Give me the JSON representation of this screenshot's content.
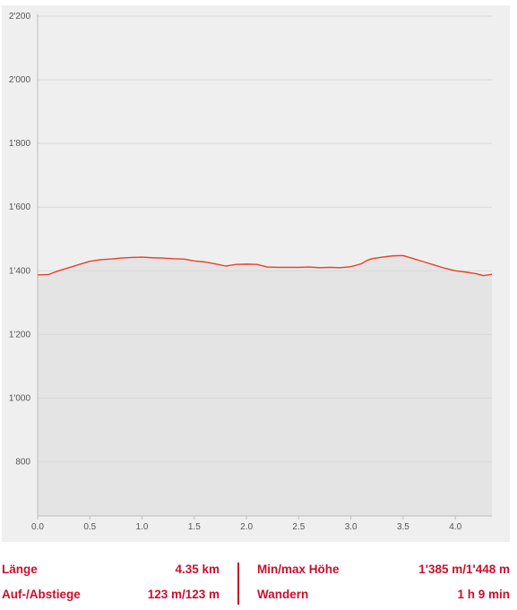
{
  "chart_data": {
    "type": "area",
    "title": "",
    "xlabel": "",
    "ylabel": "",
    "xlim": [
      0,
      4.35
    ],
    "ylim": [
      630,
      2200
    ],
    "grid": true,
    "x_ticks": [
      0.0,
      0.5,
      1.0,
      1.5,
      2.0,
      2.5,
      3.0,
      3.5,
      4.0
    ],
    "x_tick_labels": [
      "0.0",
      "0.5",
      "1.0",
      "1.5",
      "2.0",
      "2.5",
      "3.0",
      "3.5",
      "4.0"
    ],
    "y_ticks": [
      800,
      1000,
      1200,
      1400,
      1600,
      1800,
      2000,
      2200
    ],
    "y_tick_labels": [
      "800",
      "1'000",
      "1'200",
      "1'400",
      "1'600",
      "1'800",
      "2'000",
      "2'200"
    ],
    "line_color": "#e8402a",
    "fill_color": "#e4e4e4",
    "background_color": "#efefef",
    "grid_color": "#d9d9d9",
    "series": [
      {
        "x": [
          0.0,
          0.1,
          0.2,
          0.3,
          0.4,
          0.5,
          0.6,
          0.7,
          0.8,
          0.9,
          1.0,
          1.1,
          1.2,
          1.3,
          1.4,
          1.5,
          1.6,
          1.7,
          1.8,
          1.9,
          2.0,
          2.1,
          2.2,
          2.3,
          2.4,
          2.5,
          2.6,
          2.7,
          2.8,
          2.9,
          3.0,
          3.1,
          3.15,
          3.2,
          3.3,
          3.4,
          3.5,
          3.6,
          3.7,
          3.8,
          3.9,
          4.0,
          4.1,
          4.2,
          4.27,
          4.35
        ],
        "values": [
          1387,
          1388,
          1400,
          1410,
          1420,
          1430,
          1435,
          1437,
          1440,
          1442,
          1443,
          1441,
          1440,
          1438,
          1437,
          1431,
          1428,
          1422,
          1415,
          1420,
          1421,
          1420,
          1412,
          1411,
          1411,
          1411,
          1412,
          1410,
          1411,
          1410,
          1413,
          1422,
          1432,
          1438,
          1443,
          1447,
          1448,
          1438,
          1428,
          1418,
          1408,
          1400,
          1396,
          1391,
          1385,
          1389
        ]
      }
    ]
  },
  "stats": {
    "length_label": "Länge",
    "length_value": "4.35 km",
    "ascent_label": "Auf-/Abstiege",
    "ascent_value": "123 m/123 m",
    "minmax_label": "Min/max Höhe",
    "minmax_value": "1'385 m/1'448 m",
    "activity_label": "Wandern",
    "activity_value": "1 h 9 min"
  }
}
